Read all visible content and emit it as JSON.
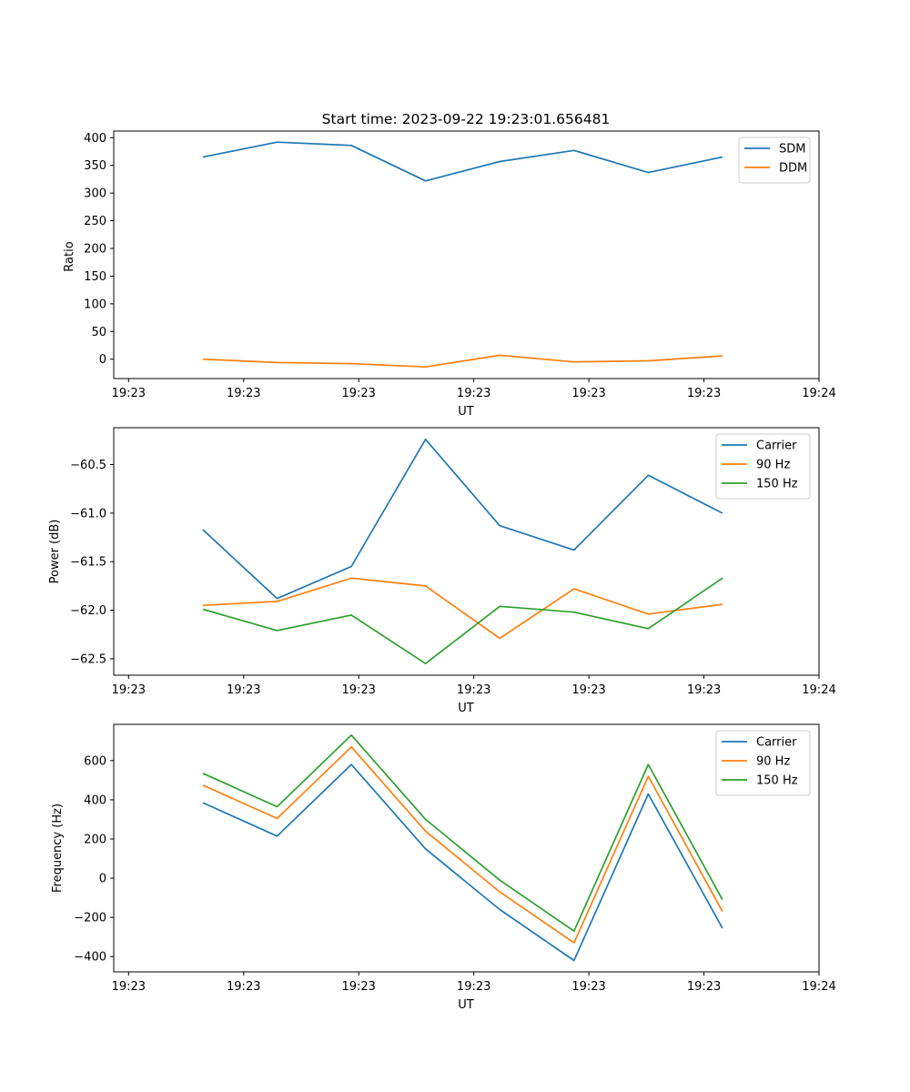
{
  "chart_data": [
    {
      "type": "line",
      "title": "Start time: 2023-09-22 19:23:01.656481",
      "xlabel": "UT",
      "ylabel": "Ratio",
      "x": [
        1,
        2,
        3,
        4,
        5,
        6,
        7,
        8
      ],
      "xlim": [
        -0.2,
        9.3
      ],
      "xticks": [
        0,
        1.55,
        3.1,
        4.65,
        6.2,
        7.75,
        9.3
      ],
      "xtick_labels": [
        "19:23",
        "19:23",
        "19:23",
        "19:23",
        "19:23",
        "19:23",
        "19:24"
      ],
      "ylim": [
        -35,
        412
      ],
      "yticks": [
        0,
        50,
        100,
        150,
        200,
        250,
        300,
        350,
        400
      ],
      "ytick_labels": [
        "0",
        "50",
        "100",
        "150",
        "200",
        "250",
        "300",
        "350",
        "400"
      ],
      "legend_position": "top-right",
      "series": [
        {
          "name": "SDM",
          "color": "#1f77b4",
          "values": [
            365,
            392,
            386,
            322,
            357,
            377,
            337,
            365
          ]
        },
        {
          "name": "DDM",
          "color": "#ff7f0e",
          "values": [
            0,
            -6,
            -8,
            -14,
            7,
            -5,
            -3,
            6
          ]
        }
      ]
    },
    {
      "type": "line",
      "title": "",
      "xlabel": "UT",
      "ylabel": "Power (dB)",
      "x": [
        1,
        2,
        3,
        4,
        5,
        6,
        7,
        8
      ],
      "xlim": [
        -0.2,
        9.3
      ],
      "xticks": [
        0,
        1.55,
        3.1,
        4.65,
        6.2,
        7.75,
        9.3
      ],
      "xtick_labels": [
        "19:23",
        "19:23",
        "19:23",
        "19:23",
        "19:23",
        "19:23",
        "19:24"
      ],
      "ylim": [
        -62.67,
        -60.12
      ],
      "yticks": [
        -62.5,
        -62.0,
        -61.5,
        -61.0,
        -60.5
      ],
      "ytick_labels": [
        "−62.5",
        "−62.0",
        "−61.5",
        "−61.0",
        "−60.5"
      ],
      "legend_position": "top-right",
      "series": [
        {
          "name": "Carrier",
          "color": "#1f77b4",
          "values": [
            -61.17,
            -61.88,
            -61.55,
            -60.24,
            -61.13,
            -61.38,
            -60.61,
            -61.0
          ]
        },
        {
          "name": "90 Hz",
          "color": "#ff7f0e",
          "values": [
            -61.95,
            -61.91,
            -61.67,
            -61.75,
            -62.29,
            -61.78,
            -62.04,
            -61.94
          ]
        },
        {
          "name": "150 Hz",
          "color": "#2ca02c",
          "values": [
            -61.99,
            -62.21,
            -62.05,
            -62.55,
            -61.96,
            -62.02,
            -62.19,
            -61.67
          ]
        }
      ]
    },
    {
      "type": "line",
      "title": "",
      "xlabel": "UT",
      "ylabel": "Frequency (Hz)",
      "x": [
        1,
        2,
        3,
        4,
        5,
        6,
        7,
        8
      ],
      "xlim": [
        -0.2,
        9.3
      ],
      "xticks": [
        0,
        1.55,
        3.1,
        4.65,
        6.2,
        7.75,
        9.3
      ],
      "xtick_labels": [
        "19:23",
        "19:23",
        "19:23",
        "19:23",
        "19:23",
        "19:23",
        "19:24"
      ],
      "ylim": [
        -478,
        785
      ],
      "yticks": [
        -400,
        -200,
        0,
        200,
        400,
        600
      ],
      "ytick_labels": [
        "−400",
        "−200",
        "0",
        "200",
        "400",
        "600"
      ],
      "legend_position": "top-right",
      "series": [
        {
          "name": "Carrier",
          "color": "#1f77b4",
          "values": [
            385,
            215,
            580,
            150,
            -160,
            -420,
            430,
            -255
          ]
        },
        {
          "name": "90 Hz",
          "color": "#ff7f0e",
          "values": [
            475,
            305,
            670,
            240,
            -70,
            -330,
            520,
            -170
          ]
        },
        {
          "name": "150 Hz",
          "color": "#2ca02c",
          "values": [
            535,
            365,
            730,
            300,
            -10,
            -270,
            580,
            -110
          ]
        }
      ]
    }
  ]
}
